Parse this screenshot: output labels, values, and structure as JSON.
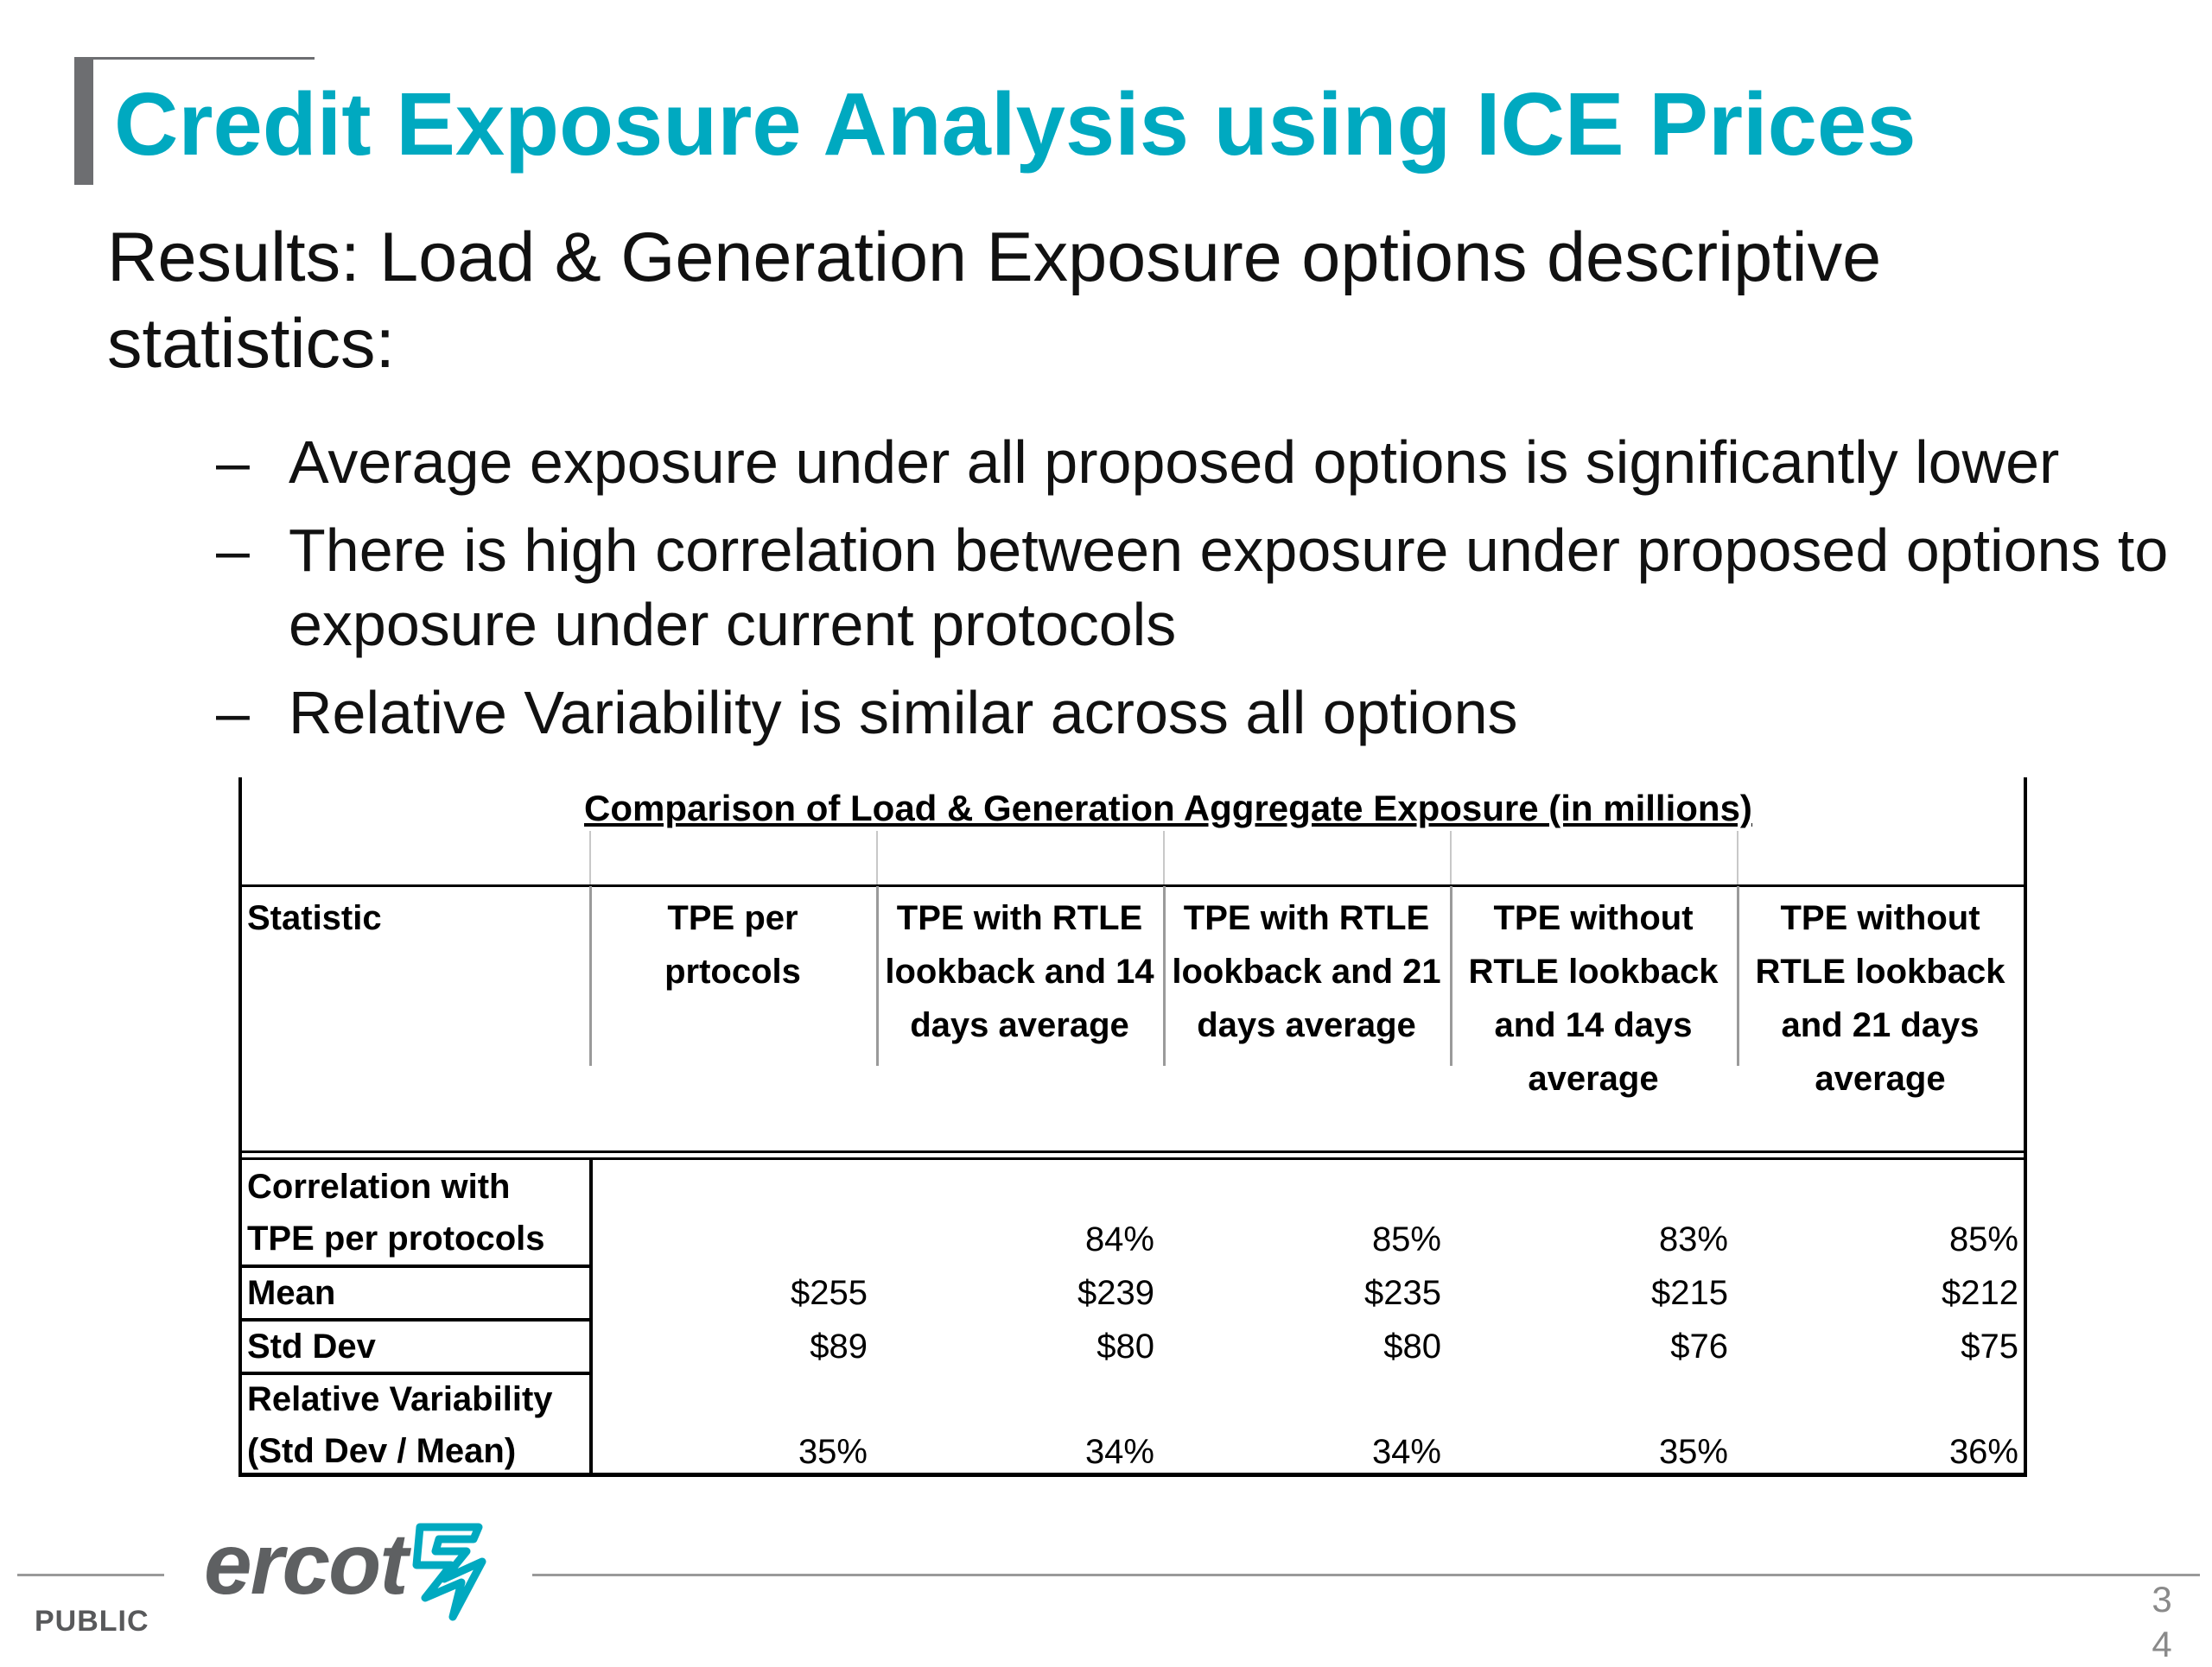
{
  "slide": {
    "title": "Credit Exposure Analysis using ICE Prices",
    "heading": "Results: Load & Generation Exposure options descriptive statistics:",
    "bullets": [
      "Average exposure under all proposed options is significantly lower",
      "There is high correlation between exposure under proposed options to exposure under current protocols",
      "Relative Variability is similar across all options"
    ],
    "bullet_marker": "–"
  },
  "table": {
    "caption": "Comparison of Load & Generation Aggregate Exposure (in millions)",
    "headers": [
      "Statistic",
      "TPE per prtocols",
      "TPE with RTLE lookback and 14 days average",
      "TPE with RTLE lookback and 21 days average",
      "TPE without RTLE lookback and 14 days average",
      "TPE without RTLE lookback and 21 days average"
    ],
    "rows": [
      {
        "label": "Correlation with TPE per protocols",
        "values": [
          "",
          "84%",
          "85%",
          "83%",
          "85%"
        ]
      },
      {
        "label": "Mean",
        "values": [
          "$255",
          "$239",
          "$235",
          "$215",
          "$212"
        ]
      },
      {
        "label": "Std Dev",
        "values": [
          "$89",
          "$80",
          "$80",
          "$76",
          "$75"
        ]
      },
      {
        "label": "Relative Variability (Std Dev / Mean)",
        "values": [
          "35%",
          "34%",
          "34%",
          "35%",
          "36%"
        ]
      }
    ]
  },
  "footer": {
    "logo_text": "ercot",
    "classification": "PUBLIC",
    "page_number": "34",
    "logo_color": "#5e6062",
    "logo_accent_color": "#00a9c0"
  },
  "colors": {
    "title": "#00a9c0",
    "title_bar": "#6d6e71",
    "text": "#111111"
  }
}
